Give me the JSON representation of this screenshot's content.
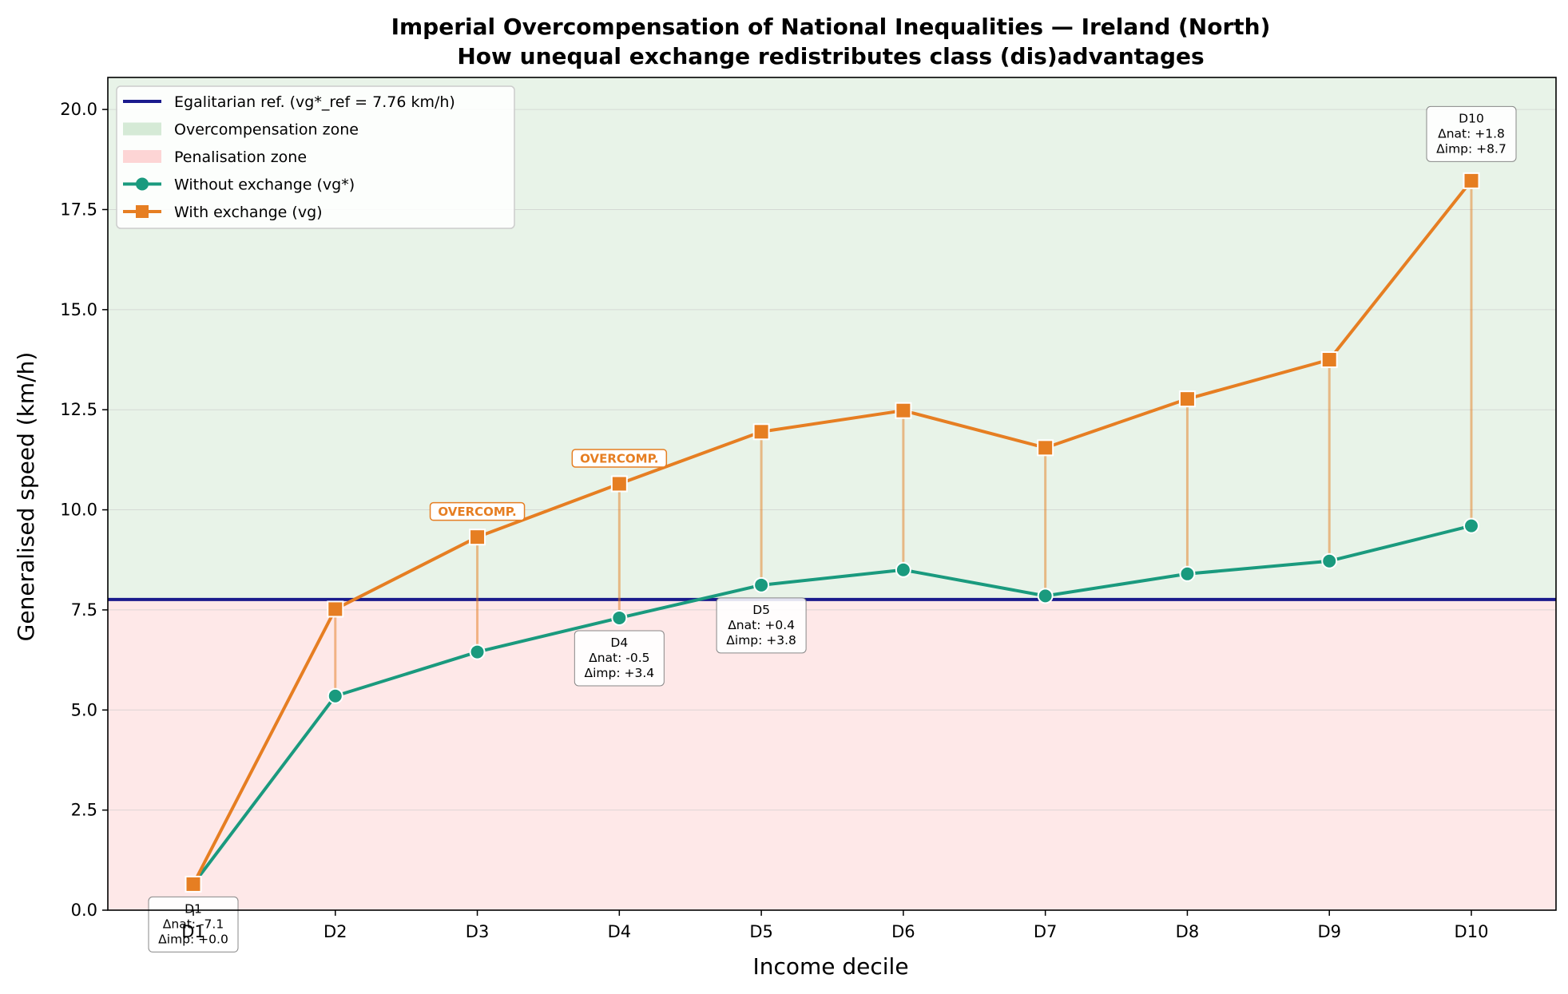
{
  "chart_data": {
    "type": "line",
    "title": "Imperial Overcompensation of National Inequalities — Ireland (North)",
    "subtitle": "How unequal exchange redistributes class (dis)advantages",
    "xlabel": "Income decile",
    "ylabel": "Generalised speed (km/h)",
    "categories": [
      "D1",
      "D2",
      "D3",
      "D4",
      "D5",
      "D6",
      "D7",
      "D8",
      "D9",
      "D10"
    ],
    "ylim": [
      0,
      20.8
    ],
    "yticks": [
      "0.0",
      "2.5",
      "5.0",
      "7.5",
      "10.0",
      "12.5",
      "15.0",
      "17.5",
      "20.0"
    ],
    "reference": {
      "label": "Egalitarian ref. (vg*_ref = 7.76 km/h)",
      "value": 7.76,
      "color": "#1a1a8c"
    },
    "zones": [
      {
        "label": "Overcompensation zone",
        "color": "#d5ead6"
      },
      {
        "label": "Penalisation zone",
        "color": "#fdd5d5"
      }
    ],
    "series": [
      {
        "name": "Without exchange (vg*)",
        "color": "#1a9a7e",
        "marker": "circle",
        "values": [
          0.65,
          5.35,
          6.45,
          7.3,
          8.12,
          8.5,
          7.85,
          8.4,
          8.72,
          9.6
        ]
      },
      {
        "name": "With exchange (vg)",
        "color": "#e67e22",
        "marker": "square",
        "values": [
          0.65,
          7.52,
          9.32,
          10.65,
          11.95,
          12.48,
          11.55,
          12.77,
          13.75,
          18.22
        ]
      }
    ],
    "annotations": [
      {
        "index": 0,
        "lines": [
          "D1",
          "Δnat: -7.1",
          "Δimp: +0.0"
        ],
        "anchor": "below"
      },
      {
        "index": 3,
        "lines": [
          "D4",
          "Δnat: -0.5",
          "Δimp: +3.4"
        ],
        "anchor": "below"
      },
      {
        "index": 4,
        "lines": [
          "D5",
          "Δnat: +0.4",
          "Δimp: +3.8"
        ],
        "anchor": "below"
      },
      {
        "index": 9,
        "lines": [
          "D10",
          "Δnat: +1.8",
          "Δimp: +8.7"
        ],
        "anchor": "above"
      }
    ],
    "tags": [
      {
        "index": 2,
        "text": "OVERCOMP."
      },
      {
        "index": 3,
        "text": "OVERCOMP."
      }
    ],
    "grid": true,
    "legend_position": "upper-left"
  }
}
